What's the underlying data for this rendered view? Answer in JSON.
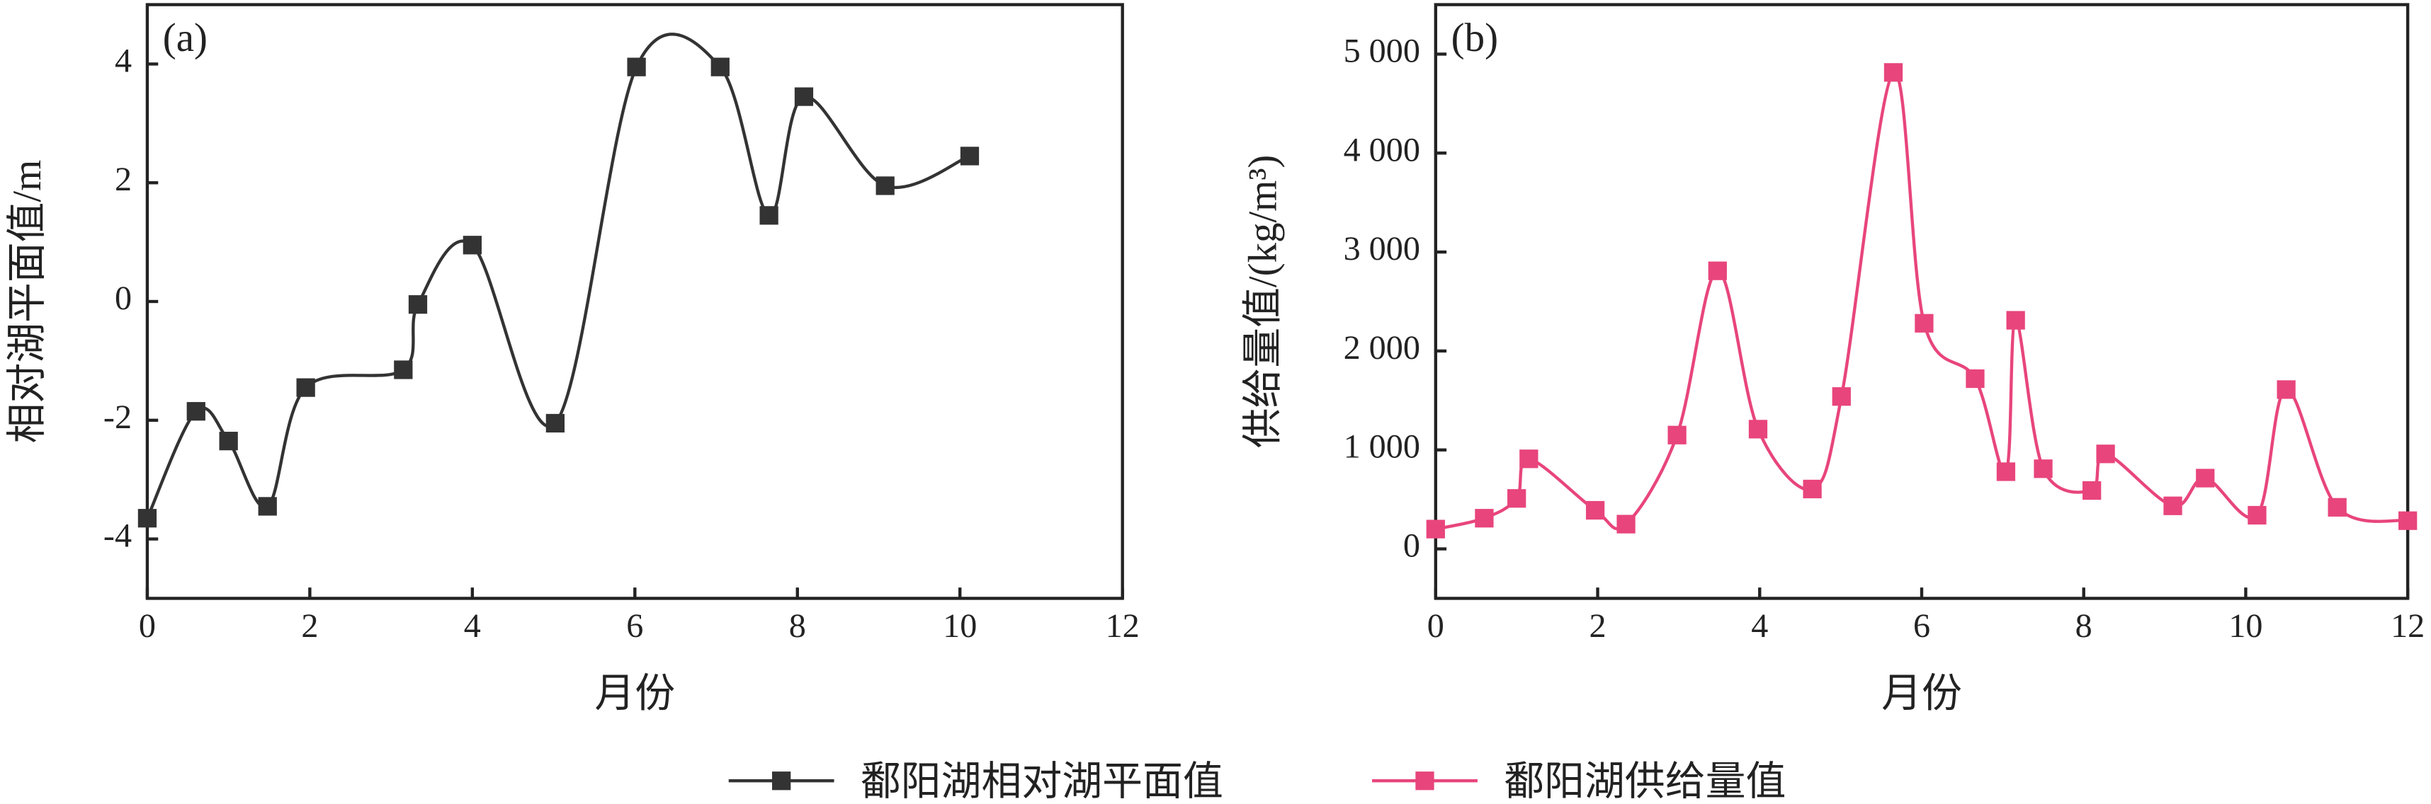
{
  "chart_data": [
    {
      "type": "line",
      "title": "(a)",
      "x_label": "月份",
      "y_label": "相对湖平面值/m",
      "x": [
        0,
        0.6,
        1.0,
        1.48,
        1.95,
        3.15,
        3.33,
        4.0,
        5.02,
        6.02,
        7.05,
        7.65,
        8.08,
        9.08,
        10.12
      ],
      "series": [
        {
          "name": "鄱阳湖相对湖平面值",
          "color": "#333333",
          "values": [
            -3.65,
            -1.85,
            -2.35,
            -3.45,
            -1.45,
            -1.15,
            -0.05,
            0.95,
            -2.05,
            3.95,
            3.95,
            1.45,
            3.45,
            1.95,
            2.45
          ]
        }
      ],
      "xlim": [
        0,
        12
      ],
      "xticks": [
        0,
        2,
        4,
        6,
        8,
        10,
        12
      ],
      "ylim": [
        -5,
        5
      ],
      "yticks": [
        -4,
        -2,
        0,
        2,
        4
      ]
    },
    {
      "type": "line",
      "title": "(b)",
      "x_label": "月份",
      "y_label": "供给量值/(kg/m³)",
      "x": [
        0,
        0.6,
        1.0,
        1.15,
        1.97,
        2.35,
        2.98,
        3.48,
        3.98,
        4.65,
        5.01,
        5.65,
        6.03,
        6.66,
        7.04,
        7.16,
        7.5,
        8.1,
        8.27,
        9.1,
        9.5,
        10.14,
        10.5,
        11.13,
        12
      ],
      "series": [
        {
          "name": "鄱阳湖供给量值",
          "color": "#e8457c",
          "values": [
            200,
            310,
            510,
            910,
            390,
            250,
            1150,
            2810,
            1210,
            605,
            1540,
            4815,
            2280,
            1720,
            780,
            2310,
            810,
            590,
            960,
            435,
            715,
            340,
            1610,
            420,
            285
          ]
        }
      ],
      "xlim": [
        0,
        12
      ],
      "xticks": [
        0,
        2,
        4,
        6,
        8,
        10,
        12
      ],
      "ylim": [
        -500,
        5500
      ],
      "yticks": [
        0,
        {
          "value": 1000,
          "label": "1 000"
        },
        {
          "value": 2000,
          "label": "2 000"
        },
        {
          "value": 3000,
          "label": "3 000"
        },
        {
          "value": 4000,
          "label": "4 000"
        },
        {
          "value": 5000,
          "label": "5 000"
        }
      ]
    }
  ]
}
